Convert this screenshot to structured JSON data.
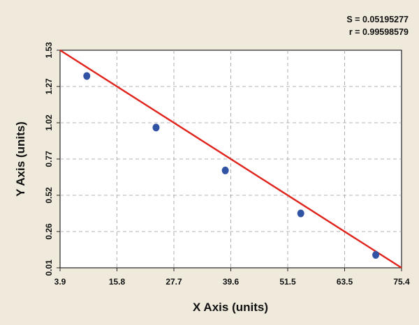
{
  "chart_data": {
    "type": "scatter",
    "title": "",
    "xlabel": "X Axis (units)",
    "ylabel": "Y Axis (units)",
    "xlim": [
      3.9,
      75.4
    ],
    "ylim": [
      0.01,
      1.53
    ],
    "x_ticks": [
      "3.9",
      "15.8",
      "27.7",
      "39.6",
      "51.5",
      "63.5",
      "75.4"
    ],
    "y_ticks": [
      "0.01",
      "0.26",
      "0.52",
      "0.77",
      "1.02",
      "1.27",
      "1.53"
    ],
    "grid": true,
    "stats": {
      "s_text": "S = 0.05195277",
      "r_text": "r = 0.99598579"
    },
    "series": [
      {
        "points": [
          {
            "x": 9.5,
            "y": 1.35
          },
          {
            "x": 24.0,
            "y": 0.99
          },
          {
            "x": 38.5,
            "y": 0.69
          },
          {
            "x": 54.3,
            "y": 0.39
          },
          {
            "x": 70.0,
            "y": 0.1
          }
        ]
      }
    ],
    "fit_line": {
      "x": [
        3.9,
        75.4
      ],
      "y": [
        1.53,
        0.01
      ]
    },
    "colors": {
      "background": "#efeadc",
      "plot_area": "#ffffff",
      "point": "#3153a3",
      "fit_line": "#e0231b",
      "grid": "#9a9a9a"
    }
  }
}
